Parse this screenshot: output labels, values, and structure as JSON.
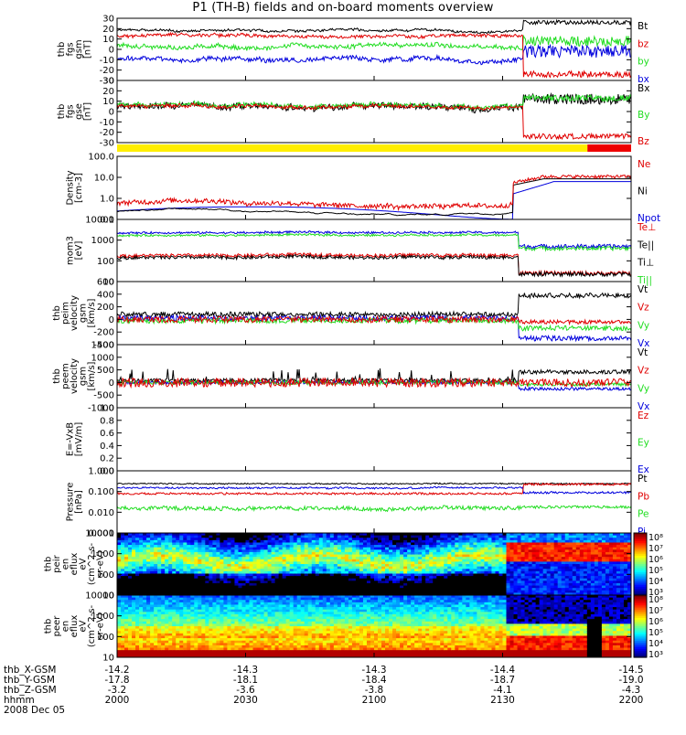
{
  "title": "P1 (TH-B) fields and on-board moments overview",
  "colors": {
    "black": "#000000",
    "red": "#e00000",
    "green": "#22dd22",
    "blue": "#0000dd",
    "yellow": "#ffee00",
    "bar_red": "#ee0000"
  },
  "chart_data": {
    "type": "line",
    "time_range": [
      "2000",
      "2200"
    ],
    "date_label": "2008 Dec 05",
    "panels": [
      {
        "ylabel": [
          "thb",
          "fgs",
          "gsm",
          "[nT]"
        ],
        "yticks": [
          "30",
          "20",
          "10",
          "0",
          "-10",
          "-20",
          "-30"
        ],
        "ylim": [
          -30,
          30
        ],
        "scale": "linear",
        "legend": [
          {
            "name": "Bt",
            "color": "#000000"
          },
          {
            "name": "bz",
            "color": "#e00000"
          },
          {
            "name": "by",
            "color": "#22dd22"
          },
          {
            "name": "bx",
            "color": "#0000dd"
          }
        ]
      },
      {
        "ylabel": [
          "thb",
          "fgs",
          "gse",
          "[nT]"
        ],
        "yticks": [
          "30",
          "20",
          "10",
          "0",
          "-10",
          "-20",
          "-30"
        ],
        "ylim": [
          -30,
          30
        ],
        "scale": "linear",
        "legend": [
          {
            "name": "Bx",
            "color": "#000000"
          },
          {
            "name": "By",
            "color": "#22dd22"
          },
          {
            "name": "Bz",
            "color": "#e00000"
          }
        ]
      },
      {
        "ylabel": [
          "Density",
          "[cm-3]"
        ],
        "yticks": [
          "100.0",
          "10.0",
          "1.0",
          "0.1"
        ],
        "ylim": [
          0.1,
          100
        ],
        "scale": "log",
        "legend": [
          {
            "name": "Ne",
            "color": "#e00000"
          },
          {
            "name": "Ni",
            "color": "#000000"
          },
          {
            "name": "Npot",
            "color": "#0000dd"
          }
        ]
      },
      {
        "ylabel": [
          "mom3",
          "[eV]"
        ],
        "yticks": [
          "10000",
          "1000",
          "100",
          "10"
        ],
        "ylim": [
          10,
          10000
        ],
        "scale": "log",
        "legend": [
          {
            "name": "Te⊥",
            "color": "#e00000"
          },
          {
            "name": "Te||",
            "color": "#000000"
          },
          {
            "name": "Ti⊥",
            "color": "#000000"
          },
          {
            "name": "Ti||",
            "color": "#22dd22"
          }
        ]
      },
      {
        "ylabel": [
          "thb",
          "peim",
          "velocity",
          "gsm",
          "[km/s]"
        ],
        "yticks": [
          "600",
          "400",
          "200",
          "0",
          "-200",
          "-400"
        ],
        "ylim": [
          -400,
          600
        ],
        "scale": "linear",
        "legend": [
          {
            "name": "Vt",
            "color": "#000000"
          },
          {
            "name": "Vz",
            "color": "#e00000"
          },
          {
            "name": "Vy",
            "color": "#22dd22"
          },
          {
            "name": "Vx",
            "color": "#0000dd"
          }
        ]
      },
      {
        "ylabel": [
          "thb",
          "peem",
          "velocity",
          "gsm",
          "[km/s]"
        ],
        "yticks": [
          "1500",
          "1000",
          "500",
          "0",
          "-500",
          "-1000"
        ],
        "ylim": [
          -1000,
          1500
        ],
        "scale": "linear",
        "legend": [
          {
            "name": "Vt",
            "color": "#000000"
          },
          {
            "name": "Vz",
            "color": "#e00000"
          },
          {
            "name": "Vy",
            "color": "#22dd22"
          },
          {
            "name": "Vx",
            "color": "#0000dd"
          }
        ]
      },
      {
        "ylabel": [
          "E=-VxB",
          "[mV/m]"
        ],
        "yticks": [
          "1.0",
          "0.8",
          "0.6",
          "0.4",
          "0.2",
          "0.0"
        ],
        "ylim": [
          0,
          1
        ],
        "scale": "linear",
        "legend": [
          {
            "name": "Ez",
            "color": "#e00000"
          },
          {
            "name": "Ey",
            "color": "#22dd22"
          },
          {
            "name": "Ex",
            "color": "#0000dd"
          }
        ]
      },
      {
        "ylabel": [
          "Pressure",
          "[nPa]"
        ],
        "yticks": [
          "1.000",
          "0.100",
          "0.010",
          "0.001"
        ],
        "ylim": [
          0.001,
          1
        ],
        "scale": "log",
        "legend": [
          {
            "name": "Pt",
            "color": "#000000"
          },
          {
            "name": "Pb",
            "color": "#e00000"
          },
          {
            "name": "Pe",
            "color": "#22dd22"
          },
          {
            "name": "Pi",
            "color": "#0000dd"
          }
        ]
      },
      {
        "ylabel": [
          "thb",
          "peir",
          "en",
          "eflux",
          "eV",
          "(cm^2-s-",
          "sr-eV)"
        ],
        "yticks": [
          "10000",
          "1000",
          "100",
          "10"
        ],
        "ylim": [
          10,
          20000
        ],
        "scale": "log",
        "colorbar": [
          "10⁸",
          "10⁷",
          "10⁶",
          "10⁵",
          "10⁴",
          "10³"
        ]
      },
      {
        "ylabel": [
          "thb",
          "peer",
          "en",
          "eflux",
          "eV",
          "(cm^2-s-",
          "sr-eV)"
        ],
        "yticks": [
          "10000",
          "1000",
          "100",
          "10"
        ],
        "ylim": [
          10,
          20000
        ],
        "scale": "log",
        "colorbar": [
          "10⁸",
          "10⁷",
          "10⁶",
          "10⁵",
          "10⁴",
          "10³"
        ]
      }
    ],
    "xaxis": {
      "row_labels": [
        "thb_X-GSM",
        "thb_Y-GSM",
        "thb_Z-GSM",
        "hhmm"
      ],
      "ticks": [
        {
          "x": "-14.2",
          "y": "-17.8",
          "z": "-3.2",
          "t": "2000"
        },
        {
          "x": "-14.3",
          "y": "-18.1",
          "z": "-3.6",
          "t": "2030"
        },
        {
          "x": "-14.3",
          "y": "-18.4",
          "z": "-3.8",
          "t": "2100"
        },
        {
          "x": "-14.4",
          "y": "-18.7",
          "z": "-4.1",
          "t": "2130"
        },
        {
          "x": "-14.5",
          "y": "-19.0",
          "z": "-4.3",
          "t": "2200"
        }
      ]
    }
  }
}
